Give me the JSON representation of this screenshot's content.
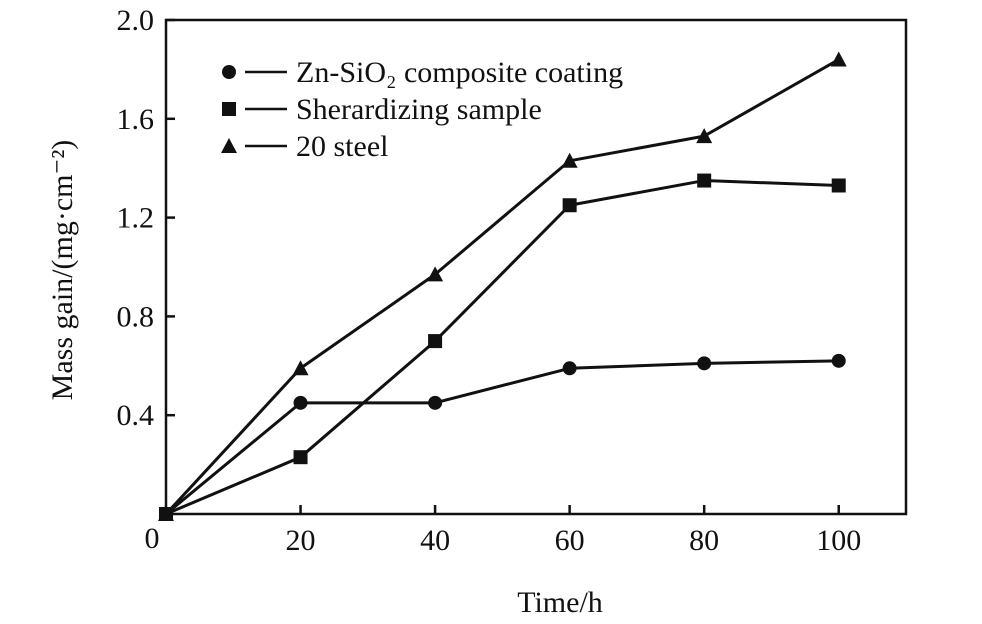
{
  "chart_data": {
    "type": "line",
    "xlabel": "Time/h",
    "ylabel": "Mass gain/(mg·cm⁻²)",
    "xlim": [
      0,
      110
    ],
    "ylim": [
      0,
      2.0
    ],
    "x_ticks": [
      20,
      40,
      60,
      80,
      100
    ],
    "y_ticks": [
      0.4,
      0.8,
      1.2,
      1.6,
      2.0
    ],
    "origin_label": "0",
    "grid": false,
    "legend_position": "top-left",
    "series": [
      {
        "name": "Zn-SiO₂ composite coating",
        "marker": "circle",
        "x": [
          0,
          20,
          40,
          60,
          80,
          100
        ],
        "y": [
          0.0,
          0.45,
          0.45,
          0.59,
          0.61,
          0.62
        ]
      },
      {
        "name": "Sherardizing sample",
        "marker": "square",
        "x": [
          0,
          20,
          40,
          60,
          80,
          100
        ],
        "y": [
          0.0,
          0.23,
          0.7,
          1.25,
          1.35,
          1.33
        ]
      },
      {
        "name": "20 steel",
        "marker": "triangle",
        "x": [
          0,
          20,
          40,
          60,
          80,
          100
        ],
        "y": [
          0.0,
          0.59,
          0.97,
          1.43,
          1.53,
          1.84
        ]
      }
    ]
  }
}
